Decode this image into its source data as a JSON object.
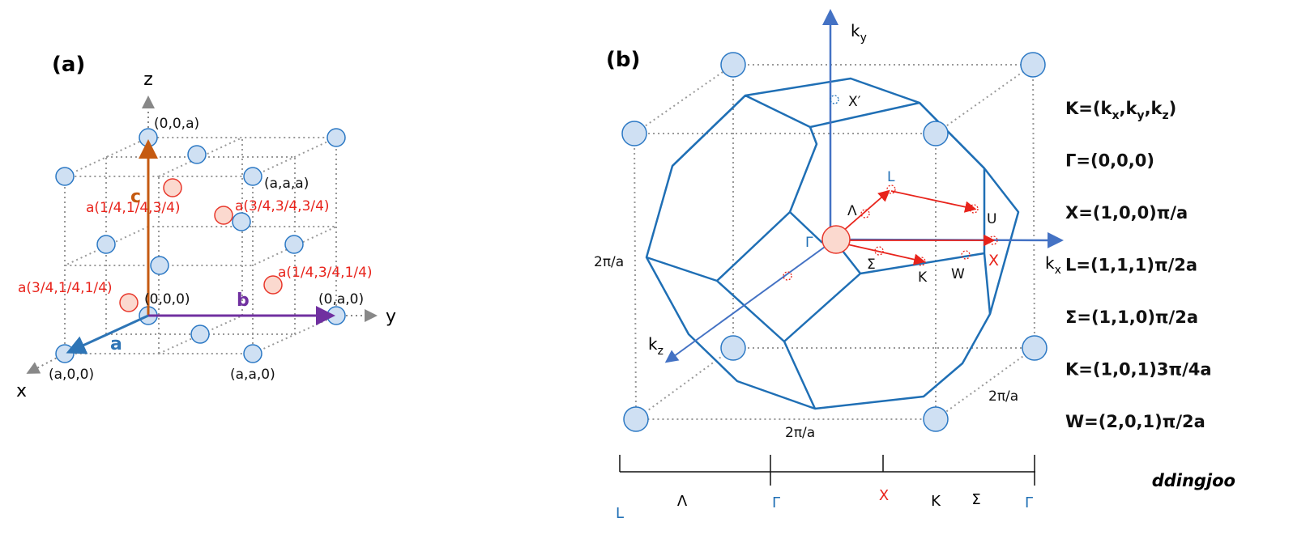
{
  "panel_a": {
    "label": "(a)",
    "axis_x": "x",
    "axis_y": "y",
    "axis_z": "z",
    "vector_a": "a",
    "vector_b": "b",
    "vector_c": "c",
    "corners": [
      "(0,0,a)",
      "(a,a,a)",
      "(0,0,0)",
      "(0,a,0)",
      "(a,0,0)",
      "(a,a,0)"
    ],
    "basis": [
      "a(1/4,1/4,3/4)",
      "a(3/4,3/4,3/4)",
      "a(1/4,3/4,1/4)",
      "a(3/4,1/4,1/4)"
    ]
  },
  "panel_b": {
    "label": "(b)",
    "kx": {
      "base": "k",
      "sub": "x"
    },
    "ky": {
      "base": "k",
      "sub": "y"
    },
    "kz": {
      "base": "k",
      "sub": "z"
    },
    "points": [
      "X′",
      "L",
      "Λ",
      "U",
      "Γ",
      "Σ",
      "K",
      "W",
      "X"
    ],
    "lengths": [
      "2π/a",
      "2π/a",
      "2π/a"
    ],
    "path": [
      "L",
      "Λ",
      "Γ",
      "X",
      "K",
      "Σ",
      "Γ"
    ]
  },
  "definitions": [
    {
      "segments": [
        {
          "text": "K=(k"
        },
        {
          "text": "x",
          "sub": true
        },
        {
          "text": ",k"
        },
        {
          "text": "y",
          "sub": true
        },
        {
          "text": ",k"
        },
        {
          "text": "z",
          "sub": true
        },
        {
          "text": ")"
        }
      ]
    },
    {
      "segments": [
        {
          "text": "Γ=(0,0,0)"
        }
      ]
    },
    {
      "segments": [
        {
          "text": "X=(1,0,0)π/a"
        }
      ]
    },
    {
      "segments": [
        {
          "text": "L=(1,1,1)π/2a"
        }
      ]
    },
    {
      "segments": [
        {
          "text": "Σ=(1,1,0)π/2a"
        }
      ]
    },
    {
      "segments": [
        {
          "text": "K=(1,0,1)3π/4a"
        }
      ]
    },
    {
      "segments": [
        {
          "text": "W=(2,0,1)π/2a"
        }
      ]
    }
  ],
  "watermark": "ddingjoo"
}
